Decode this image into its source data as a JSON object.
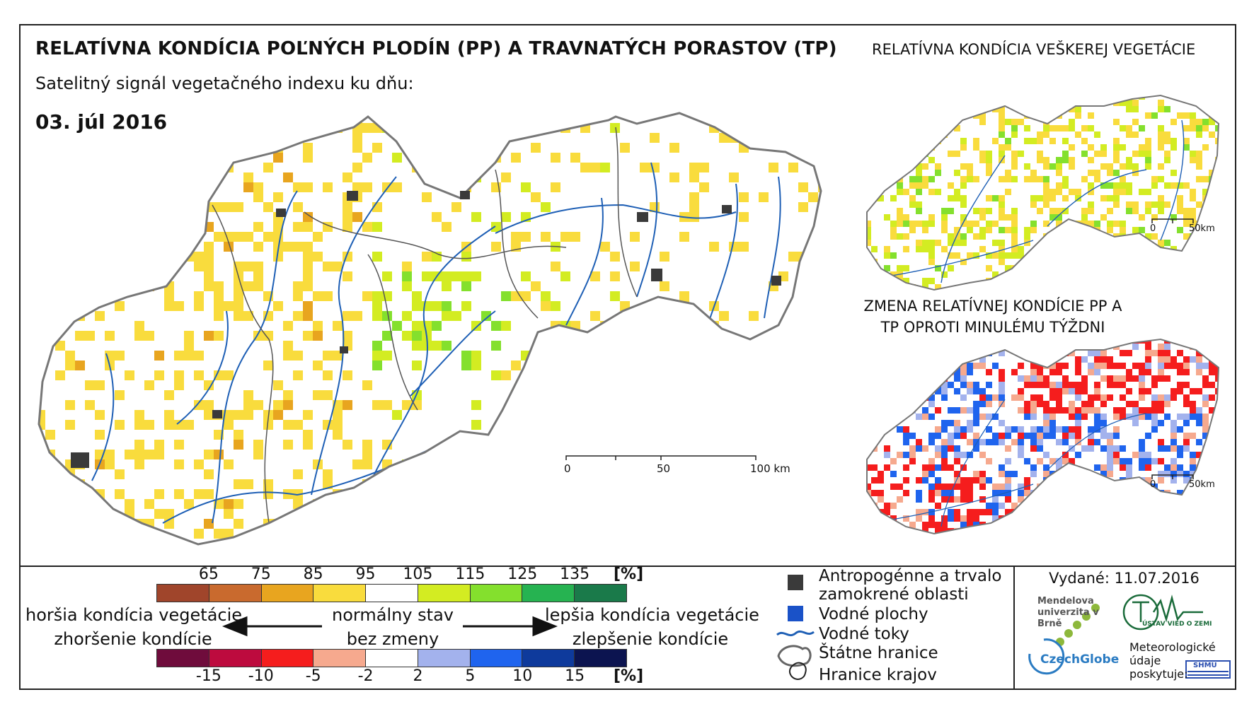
{
  "title": "RELATÍVNA KONDÍCIA POĽNÝCH PLODÍN (PP) A TRAVNATÝCH PORASTOV (TP)",
  "subtitle": "Satelitný signál vegetačného indexu ku dňu:",
  "date": "03. júl 2016",
  "right_title": "RELATÍVNA KONDÍCIA VEŠKEREJ VEGETÁCIE",
  "change_title": "ZMENA RELATÍVNEJ KONDÍCIE PP A TP OPROTI MINULÉMU TÝŽDNI",
  "scales": {
    "main": {
      "zero": "0",
      "mid": "50",
      "end": "100 km"
    },
    "small_top": {
      "zero": "0",
      "end": "50km"
    },
    "small_bottom": {
      "zero": "0",
      "end": "50km"
    }
  },
  "legend": {
    "condition_ticks": [
      "65",
      "75",
      "85",
      "95",
      "105",
      "115",
      "125",
      "135"
    ],
    "condition_colors": [
      "#a0452b",
      "#c96a2e",
      "#e8a51f",
      "#f9dc3d",
      "#ffffff",
      "#d3ec22",
      "#84e02d",
      "#26b351",
      "#1a7a4a"
    ],
    "change_ticks": [
      "-15",
      "-10",
      "-5",
      "-2",
      "2",
      "5",
      "10",
      "15"
    ],
    "change_colors": [
      "#6f0c3c",
      "#bd0b3e",
      "#f51d1d",
      "#f6a98e",
      "#ffffff",
      "#a3b2ed",
      "#1f64ee",
      "#0e3a9c",
      "#0c1450"
    ],
    "unit": "[%]",
    "worse_1": "horšia kondícia vegetácie",
    "worse_2": "zhoršenie kondície",
    "normal_1": "normálny stav",
    "normal_2": "bez zmeny",
    "better_1": "lepšia kondícia vegetácie",
    "better_2": "zlepšenie kondície"
  },
  "key": {
    "anthropogenic_1": "Antropogénne a trvalo",
    "anthropogenic_2": "zamokrené oblasti",
    "water_bodies": "Vodné plochy",
    "water_courses": "Vodné toky",
    "state_border": "Štátne hranice",
    "region_border": "Hranice krajov"
  },
  "colors": {
    "anthropogenic": "#3a3a3a",
    "water": "#1a52c8",
    "river": "#1e5fb5",
    "border": "#777777"
  },
  "issued": "Vydané: 11.07.2016",
  "logos": {
    "mendel": "Mendelova univerzita v Brně",
    "czechglobe": "CzechGlobe",
    "ustav": "ÚSTAV VIED O ZEMI",
    "met_1": "Meteorologické",
    "met_2": "údaje",
    "met_3": "poskytuje:",
    "shmu": "SHMÚ"
  }
}
